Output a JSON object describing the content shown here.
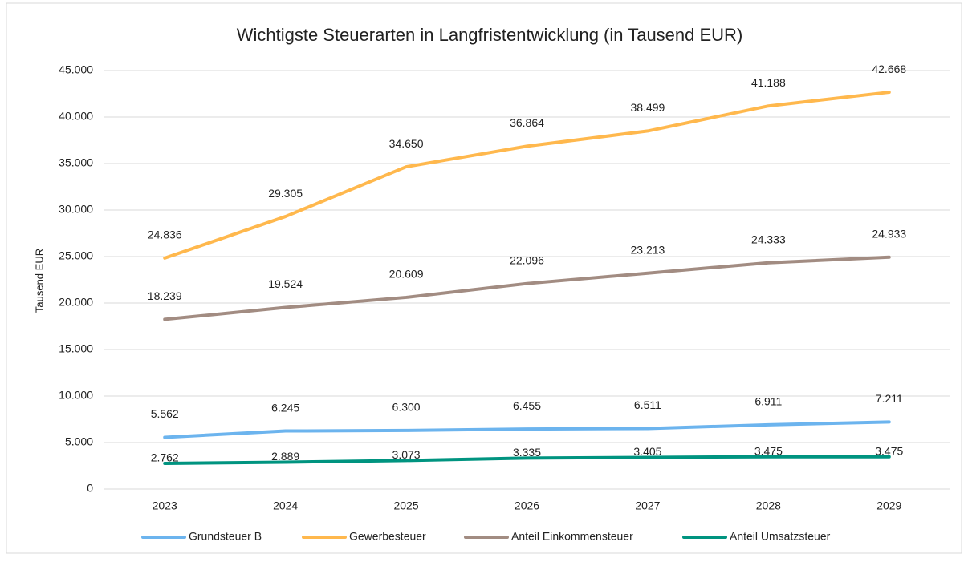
{
  "chart_data": {
    "type": "line",
    "title": "Wichtigste Steuerarten in Langfristentwicklung (in Tausend EUR)",
    "y_label": "Tausend EUR",
    "categories": [
      "2023",
      "2024",
      "2025",
      "2026",
      "2027",
      "2028",
      "2029"
    ],
    "series": [
      {
        "name": "Grundsteuer B",
        "color": "#6cb4ee",
        "values": [
          5562,
          6245,
          6300,
          6455,
          6511,
          6911,
          7211
        ],
        "value_labels": [
          "5.562",
          "6.245",
          "6.300",
          "6.455",
          "6.511",
          "6.911",
          "7.211"
        ]
      },
      {
        "name": "Gewerbesteuer",
        "color": "#ffb84d",
        "values": [
          24836,
          29305,
          34650,
          36864,
          38499,
          41188,
          42668
        ],
        "value_labels": [
          "24.836",
          "29.305",
          "34.650",
          "36.864",
          "38.499",
          "41.188",
          "42.668"
        ]
      },
      {
        "name": "Anteil Einkommensteuer",
        "color": "#a28c82",
        "values": [
          18239,
          19524,
          20609,
          22096,
          23213,
          24333,
          24933
        ],
        "value_labels": [
          "18.239",
          "19.524",
          "20.609",
          "22.096",
          "23.213",
          "24.333",
          "24.933"
        ]
      },
      {
        "name": "Anteil Umsatzsteuer",
        "color": "#009480",
        "values": [
          2762,
          2889,
          3073,
          3335,
          3405,
          3475,
          3475
        ],
        "value_labels": [
          "2.762",
          "2.889",
          "3.073",
          "3.335",
          "3.405",
          "3.475",
          "3.475"
        ]
      }
    ],
    "ylim": [
      0,
      45000
    ],
    "yticks": [
      0,
      {
        "value": 5000,
        "label": "5.000"
      },
      {
        "value": 10000,
        "label": "10.000"
      },
      {
        "value": 15000,
        "label": "15.000"
      },
      {
        "value": 20000,
        "label": "20.000"
      },
      {
        "value": 25000,
        "label": "25.000"
      },
      {
        "value": 30000,
        "label": "30.000"
      },
      {
        "value": 35000,
        "label": "35.000"
      },
      {
        "value": 40000,
        "label": "40.000"
      },
      {
        "value": 45000,
        "label": "45.000"
      }
    ],
    "grid": true,
    "legend": "bottom"
  }
}
